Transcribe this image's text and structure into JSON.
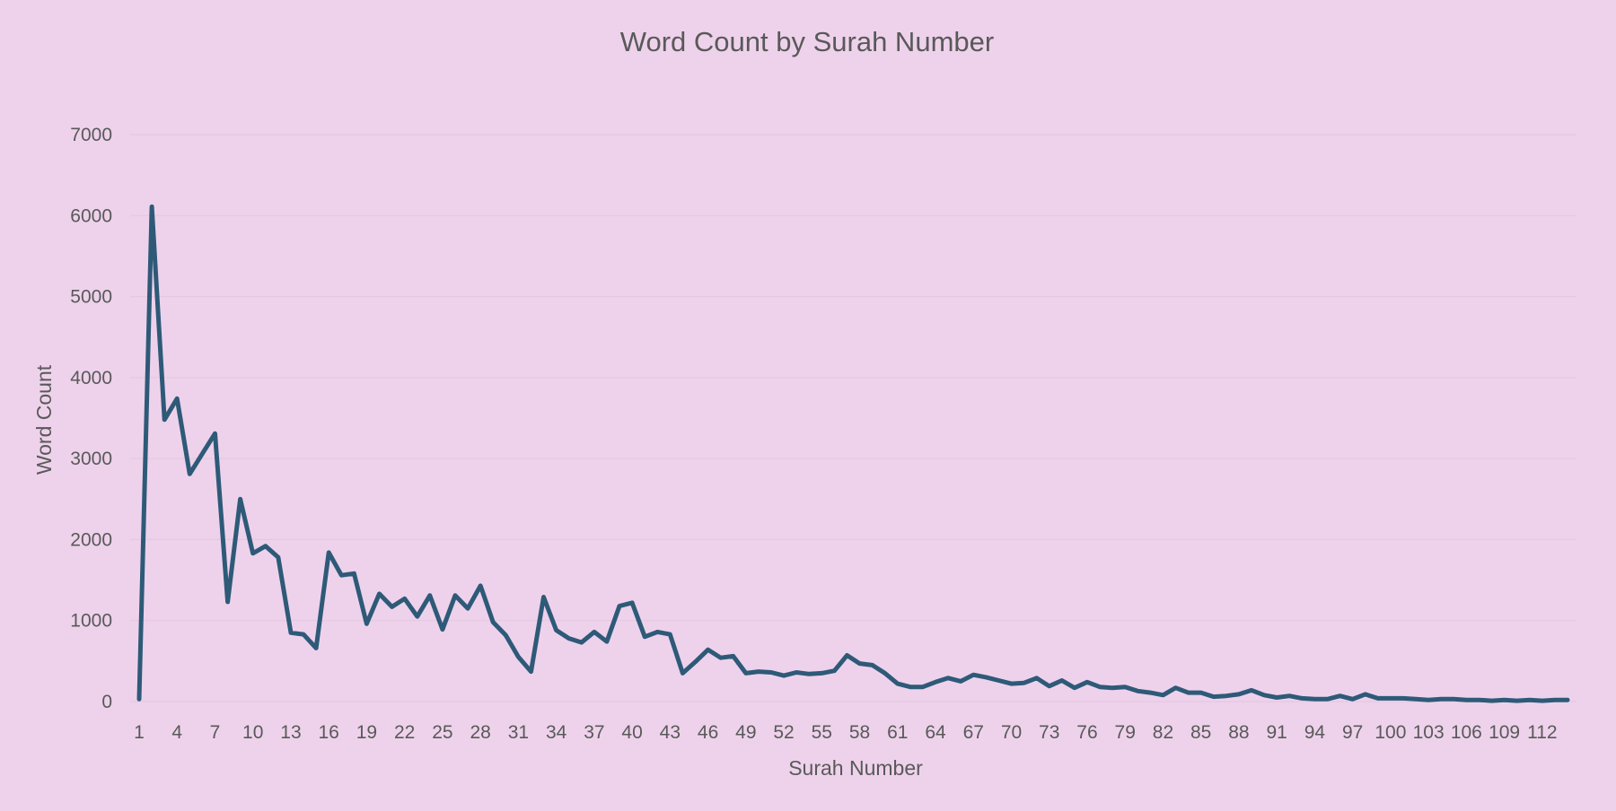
{
  "chart_data": {
    "type": "line",
    "title": "Word Count by Surah Number",
    "xlabel": "Surah Number",
    "ylabel": "Word Count",
    "ylim": [
      0,
      7000
    ],
    "yticks": [
      0,
      1000,
      2000,
      3000,
      4000,
      5000,
      6000,
      7000
    ],
    "x": [
      1,
      2,
      3,
      4,
      5,
      6,
      7,
      8,
      9,
      10,
      11,
      12,
      13,
      14,
      15,
      16,
      17,
      18,
      19,
      20,
      21,
      22,
      23,
      24,
      25,
      26,
      27,
      28,
      29,
      30,
      31,
      32,
      33,
      34,
      35,
      36,
      37,
      38,
      39,
      40,
      41,
      42,
      43,
      44,
      45,
      46,
      47,
      48,
      49,
      50,
      51,
      52,
      53,
      54,
      55,
      56,
      57,
      58,
      59,
      60,
      61,
      62,
      63,
      64,
      65,
      66,
      67,
      68,
      69,
      70,
      71,
      72,
      73,
      74,
      75,
      76,
      77,
      78,
      79,
      80,
      81,
      82,
      83,
      84,
      85,
      86,
      87,
      88,
      89,
      90,
      91,
      92,
      93,
      94,
      95,
      96,
      97,
      98,
      99,
      100,
      101,
      102,
      103,
      104,
      105,
      106,
      107,
      108,
      109,
      110,
      111,
      112,
      113,
      114
    ],
    "xtick_labels": [
      "1",
      "4",
      "7",
      "10",
      "13",
      "16",
      "19",
      "22",
      "25",
      "28",
      "31",
      "34",
      "37",
      "40",
      "43",
      "46",
      "49",
      "52",
      "55",
      "58",
      "61",
      "64",
      "67",
      "70",
      "73",
      "76",
      "79",
      "82",
      "85",
      "88",
      "91",
      "94",
      "97",
      "100",
      "103",
      "106",
      "109",
      "112"
    ],
    "series": [
      {
        "color": "#2e5a78",
        "values": [
          30,
          6110,
          3480,
          3740,
          2810,
          3060,
          3310,
          1230,
          2500,
          1830,
          1920,
          1780,
          850,
          830,
          660,
          1840,
          1560,
          1580,
          960,
          1330,
          1170,
          1270,
          1050,
          1310,
          890,
          1310,
          1150,
          1430,
          980,
          820,
          550,
          370,
          1290,
          880,
          780,
          730,
          860,
          740,
          1180,
          1220,
          800,
          860,
          830,
          350,
          490,
          640,
          540,
          560,
          350,
          370,
          360,
          320,
          360,
          340,
          350,
          380,
          570,
          470,
          450,
          350,
          220,
          180,
          180,
          240,
          290,
          250,
          330,
          300,
          260,
          220,
          230,
          290,
          190,
          260,
          170,
          240,
          180,
          170,
          180,
          130,
          110,
          80,
          170,
          110,
          110,
          60,
          70,
          90,
          140,
          80,
          50,
          70,
          40,
          30,
          30,
          70,
          30,
          90,
          40,
          40,
          40,
          30,
          20,
          30,
          30,
          20,
          20,
          10,
          20,
          10,
          20,
          10,
          20,
          20
        ]
      }
    ]
  }
}
